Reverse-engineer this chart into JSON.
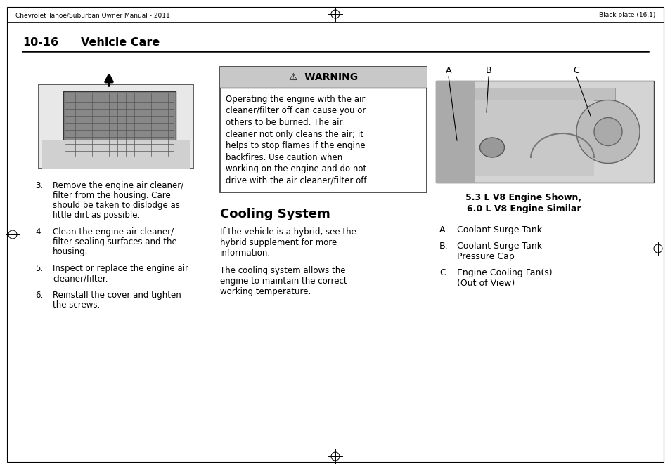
{
  "page_bg": "#ffffff",
  "header_left": "Chevrolet Tahoe/Suburban Owner Manual - 2011",
  "header_right": "Black plate (16,1)",
  "section_title": "10-16",
  "section_subtitle": "Vehicle Care",
  "warning_title": "⚠  WARNING",
  "warning_bg": "#cccccc",
  "warning_text_lines": [
    "Operating the engine with the air",
    "cleaner/filter off can cause you or",
    "others to be burned. The air",
    "cleaner not only cleans the air; it",
    "helps to stop flames if the engine",
    "backfires. Use caution when",
    "working on the engine and do not",
    "drive with the air cleaner/filter off."
  ],
  "cooling_title": "Cooling System",
  "cooling_text1_lines": [
    "If the vehicle is a hybrid, see the",
    "hybrid supplement for more",
    "information."
  ],
  "cooling_text2_lines": [
    "The cooling system allows the",
    "engine to maintain the correct",
    "working temperature."
  ],
  "engine_caption_line1": "5.3 L V8 Engine Shown,",
  "engine_caption_line2": "6.0 L V8 Engine Similar",
  "items": [
    {
      "label": "A.",
      "text_lines": [
        "Coolant Surge Tank"
      ]
    },
    {
      "label": "B.",
      "text_lines": [
        "Coolant Surge Tank",
        "Pressure Cap"
      ]
    },
    {
      "label": "C.",
      "text_lines": [
        "Engine Cooling Fan(s)",
        "(Out of View)"
      ]
    }
  ],
  "numbered_items": [
    {
      "num": "3.",
      "text_lines": [
        "Remove the engine air cleaner/",
        "filter from the housing. Care",
        "should be taken to dislodge as",
        "little dirt as possible."
      ]
    },
    {
      "num": "4.",
      "text_lines": [
        "Clean the engine air cleaner/",
        "filter sealing surfaces and the",
        "housing."
      ]
    },
    {
      "num": "5.",
      "text_lines": [
        "Inspect or replace the engine air",
        "cleaner/filter."
      ]
    },
    {
      "num": "6.",
      "text_lines": [
        "Reinstall the cover and tighten",
        "the screws."
      ]
    }
  ]
}
